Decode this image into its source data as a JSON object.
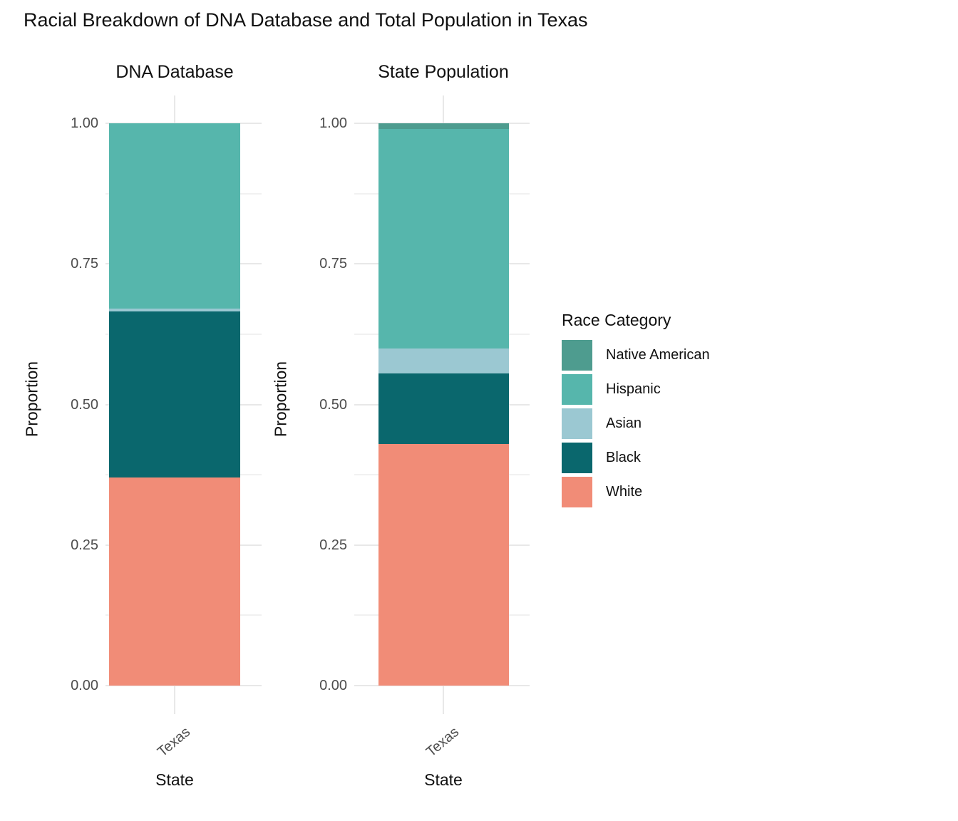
{
  "title": "Racial Breakdown of DNA Database and Total Population in Texas",
  "y_axis": {
    "label": "Proportion",
    "ticks": [
      "0.00",
      "0.25",
      "0.50",
      "0.75",
      "1.00"
    ]
  },
  "x_axis": {
    "label": "State",
    "category": "Texas"
  },
  "legend": {
    "title": "Race Category",
    "entries": [
      {
        "label": "Native American",
        "color": "#4E9C8F"
      },
      {
        "label": "Hispanic",
        "color": "#56B6AC"
      },
      {
        "label": "Asian",
        "color": "#9BC8D2"
      },
      {
        "label": "Black",
        "color": "#0A676D"
      },
      {
        "label": "White",
        "color": "#F18C77"
      }
    ]
  },
  "chart_data": {
    "type": "bar",
    "stacked": true,
    "title": "Racial Breakdown of DNA Database and Total Population in Texas",
    "categories": [
      "Texas"
    ],
    "xlabel": "State",
    "ylabel": "Proportion",
    "ylim": [
      0,
      1
    ],
    "ytick_values": [
      0.0,
      0.25,
      0.5,
      0.75,
      1.0
    ],
    "grid": true,
    "legend_position": "right",
    "stack_order_bottom_to_top": [
      "White",
      "Black",
      "Asian",
      "Hispanic",
      "Native American"
    ],
    "panels": [
      {
        "title": "DNA Database",
        "category": "Texas",
        "series": [
          {
            "name": "White",
            "value": 0.37
          },
          {
            "name": "Black",
            "value": 0.295
          },
          {
            "name": "Asian",
            "value": 0.005
          },
          {
            "name": "Hispanic",
            "value": 0.33
          },
          {
            "name": "Native American",
            "value": 0.0
          }
        ]
      },
      {
        "title": "State Population",
        "category": "Texas",
        "series": [
          {
            "name": "White",
            "value": 0.43
          },
          {
            "name": "Black",
            "value": 0.125
          },
          {
            "name": "Asian",
            "value": 0.045
          },
          {
            "name": "Hispanic",
            "value": 0.39
          },
          {
            "name": "Native American",
            "value": 0.01
          }
        ]
      }
    ]
  }
}
